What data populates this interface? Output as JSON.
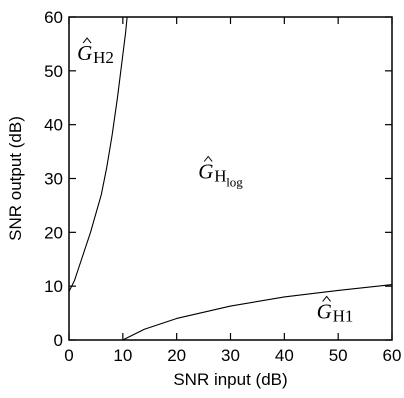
{
  "chart_data": {
    "type": "line",
    "xlabel": "SNR input (dB)",
    "ylabel": "SNR output (dB)",
    "xlim": [
      0,
      60
    ],
    "ylim": [
      0,
      60
    ],
    "xticks": [
      0,
      10,
      20,
      30,
      40,
      50,
      60
    ],
    "yticks": [
      0,
      10,
      20,
      30,
      40,
      50,
      60
    ],
    "grid": false,
    "series": [
      {
        "points": [
          [
            0,
            9
          ],
          [
            1,
            11
          ],
          [
            2,
            14
          ],
          [
            3,
            17
          ],
          [
            4,
            20
          ],
          [
            6,
            27
          ],
          [
            7,
            32
          ],
          [
            8,
            38
          ],
          [
            9,
            45
          ],
          [
            10,
            53
          ],
          [
            10.5,
            57
          ],
          [
            10.8,
            60
          ]
        ]
      },
      {
        "points": [
          [
            10,
            0
          ],
          [
            14,
            2
          ],
          [
            20,
            4
          ],
          [
            30,
            6.3
          ],
          [
            40,
            8
          ],
          [
            50,
            9.2
          ],
          [
            60,
            10.3
          ]
        ]
      }
    ],
    "annotations": [
      {
        "x": 1.5,
        "y": 52,
        "label": "G",
        "subscript": "H2"
      },
      {
        "x": 24,
        "y": 30,
        "label": "G",
        "subscript": "H",
        "subsubscript": "log"
      },
      {
        "x": 46,
        "y": 4,
        "label": "G",
        "subscript": "H1"
      }
    ]
  }
}
